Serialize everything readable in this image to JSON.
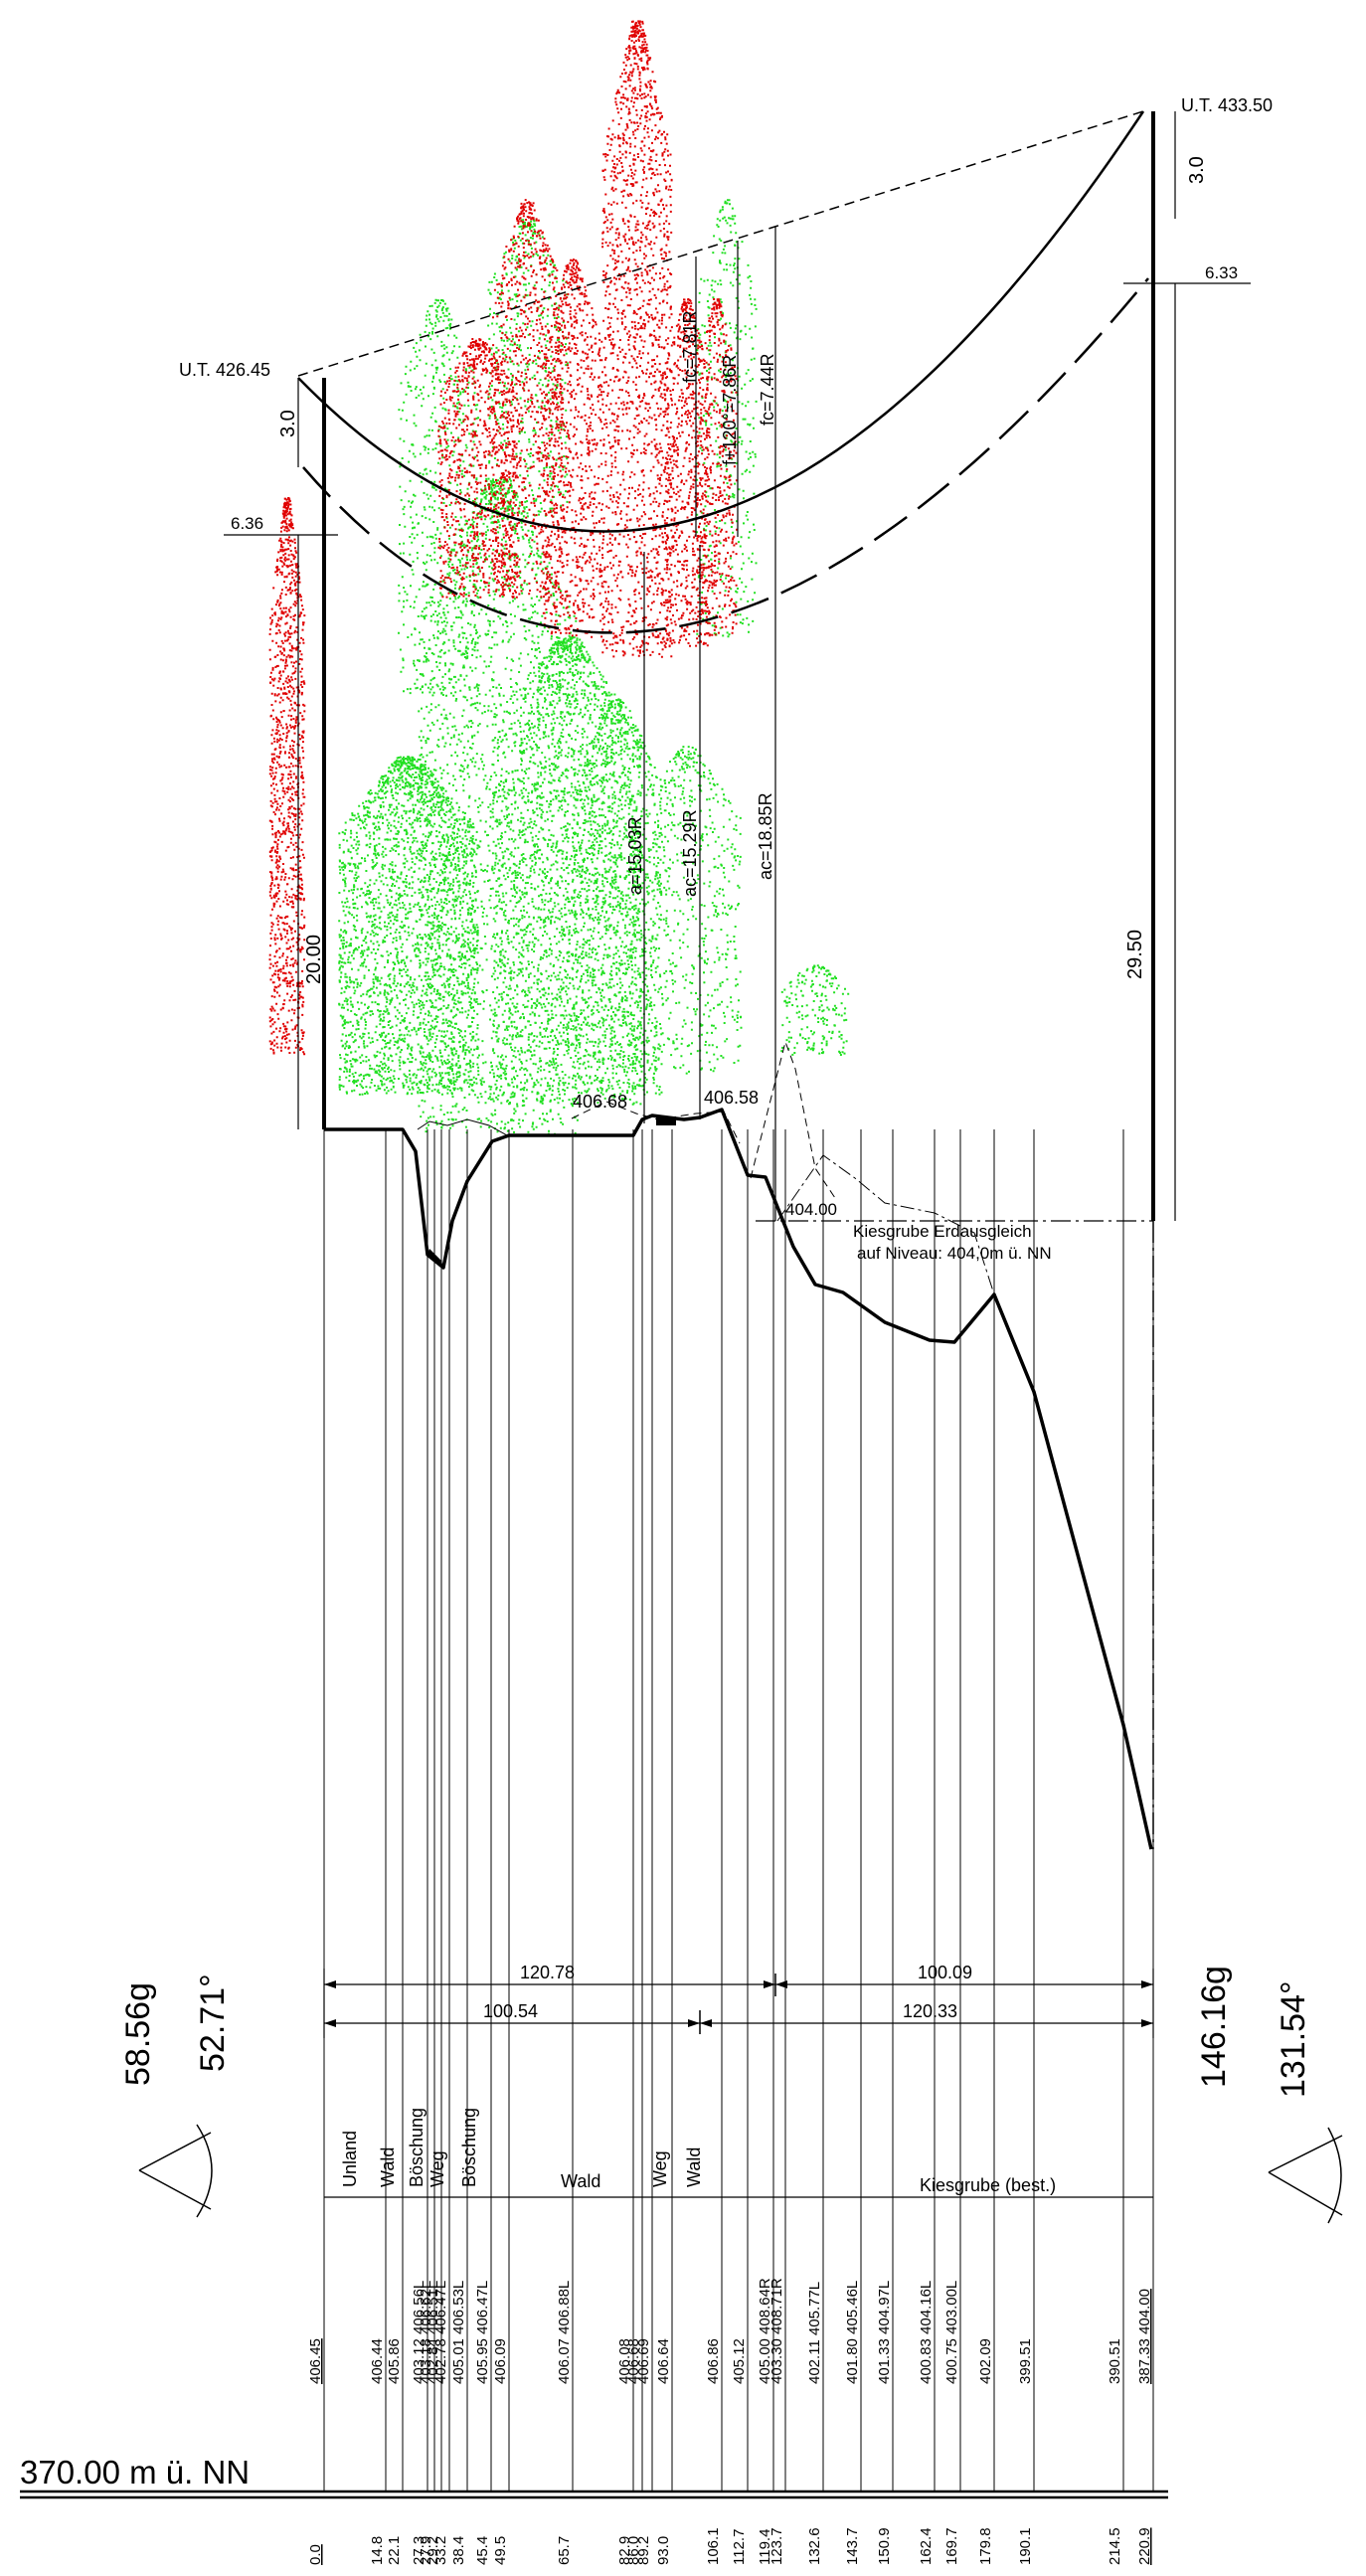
{
  "drawing": {
    "datum_label": "370.00 m ü. NN",
    "ut_left": "U.T. 426.45",
    "ut_right": "U.T. 433.50",
    "dim_left_3": "3.0",
    "dim_right_3": "3.0",
    "dim_left_636": "6.36",
    "dim_right_633": "6.33",
    "dim_left_height": "20.00",
    "dim_right_height": "29.50",
    "sag_fc_781": "fc=7.81R",
    "sag_f120": "f+120°=7.86R",
    "sag_fc_744": "fc=7.44R",
    "clear_a": "a=15.03R",
    "clear_ac_1529": "ac=15.29R",
    "clear_ac_1885": "ac=18.85R",
    "ground_40668": "406.68",
    "ground_40658": "406.58",
    "ground_40400": "404.00",
    "kies_line1": "Kiesgrube Erdausgleich",
    "kies_line2": "auf Niveau: 404,0m ü. NN",
    "span_top_left": "120.78",
    "span_top_right": "100.09",
    "span_bot_left": "100.54",
    "span_bot_right": "120.33",
    "angle_left_g": "58.56g",
    "angle_left_deg": "52.71°",
    "angle_right_g": "146.16g",
    "angle_right_deg": "131.54°",
    "landuse": [
      {
        "label": "Unland"
      },
      {
        "label": "Wald"
      },
      {
        "label": "Böschung"
      },
      {
        "label": "Weg"
      },
      {
        "label": "Böschung"
      },
      {
        "label": "Wald"
      },
      {
        "label": "Weg"
      },
      {
        "label": "Wald"
      },
      {
        "label": "Kiesgrube (best.)"
      }
    ],
    "stations": [
      {
        "elev": "406.45",
        "dist": "0.0",
        "underline": true
      },
      {
        "elev": "406.44",
        "dist": "14.8"
      },
      {
        "elev": "405.86",
        "dist": "22.1"
      },
      {
        "elev": "403.12 406.56L",
        "dist": "27.3"
      },
      {
        "elev": "403.18 406.62L",
        "dist": "27.9"
      },
      {
        "elev": "402.84 406.51L",
        "dist": "29.2"
      },
      {
        "elev": "402.78 406.47L",
        "dist": "33.2"
      },
      {
        "elev": "405.01 406.53L",
        "dist": "38.4"
      },
      {
        "elev": "405.95 406.47L",
        "dist": "45.4"
      },
      {
        "elev": "406.09",
        "dist": "49.5"
      },
      {
        "elev": "406.07 406.88L",
        "dist": "65.7"
      },
      {
        "elev": "406.08",
        "dist": "82.9"
      },
      {
        "elev": "406.68",
        "dist": "86.0"
      },
      {
        "elev": "406.69",
        "dist": "89.2"
      },
      {
        "elev": "406.64",
        "dist": "93.0"
      },
      {
        "elev": "406.86",
        "dist": "106.1"
      },
      {
        "elev": "405.12",
        "dist": "112.7"
      },
      {
        "elev": "405.00 408.64R",
        "dist": "119.4"
      },
      {
        "elev": "403.30 408.71R",
        "dist": "123.7"
      },
      {
        "elev": "402.11 405.77L",
        "dist": "132.6"
      },
      {
        "elev": "401.80 405.46L",
        "dist": "143.7"
      },
      {
        "elev": "401.33 404.97L",
        "dist": "150.9"
      },
      {
        "elev": "400.83 404.16L",
        "dist": "162.4"
      },
      {
        "elev": "400.75 403.00L",
        "dist": "169.7"
      },
      {
        "elev": "402.09",
        "dist": "179.8"
      },
      {
        "elev": "399.51",
        "dist": "190.1"
      },
      {
        "elev": "390.51",
        "dist": "214.5"
      },
      {
        "elev": "387.33  404.00",
        "dist": "220.9",
        "underline": true
      }
    ],
    "colors": {
      "tree_red": "#e00000",
      "tree_green": "#22e022",
      "line": "#000000"
    }
  }
}
